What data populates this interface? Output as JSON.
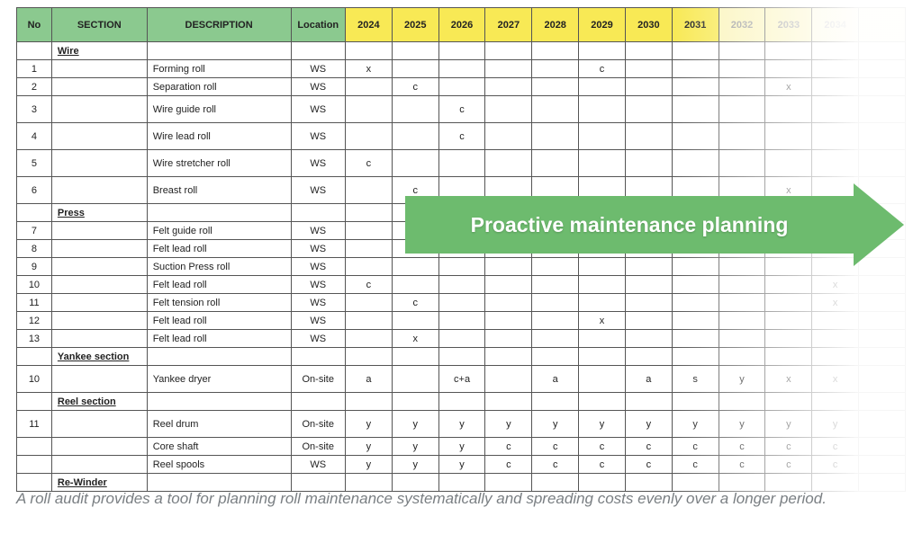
{
  "header": {
    "fixed_cols": [
      "No",
      "SECTION",
      "DESCRIPTION",
      "Location"
    ],
    "years": [
      "2024",
      "2025",
      "2026",
      "2027",
      "2028",
      "2029",
      "2030",
      "2031",
      "2032",
      "2033",
      "2034",
      ""
    ],
    "colors": {
      "green": "#8bc98f",
      "yellow": "#f8e955",
      "fade1": "#fbf4b9",
      "fade2": "#fdf9d8"
    }
  },
  "sections": {
    "wire": "Wire",
    "press": "Press",
    "yankee": "Yankee section",
    "reel": "Reel section",
    "rewind": "Re-Winder"
  },
  "rows": {
    "r1": {
      "no": "1",
      "desc": "Forming roll",
      "loc": "WS",
      "cells": [
        "x",
        "",
        "",
        "",
        "",
        "c",
        "",
        "",
        "",
        "",
        "",
        ""
      ]
    },
    "r2": {
      "no": "2",
      "desc": "Separation roll",
      "loc": "WS",
      "cells": [
        "",
        "c",
        "",
        "",
        "",
        "",
        "",
        "",
        "",
        "x",
        "",
        ""
      ]
    },
    "r3": {
      "no": "3",
      "desc": "Wire guide roll",
      "loc": "WS",
      "cells": [
        "",
        "",
        "c",
        "",
        "",
        "",
        "",
        "",
        "",
        "",
        "",
        ""
      ]
    },
    "r4": {
      "no": "4",
      "desc": "Wire lead roll",
      "loc": "WS",
      "cells": [
        "",
        "",
        "c",
        "",
        "",
        "",
        "",
        "",
        "",
        "",
        "",
        ""
      ]
    },
    "r5": {
      "no": "5",
      "desc": "Wire stretcher roll",
      "loc": "WS",
      "cells": [
        "c",
        "",
        "",
        "",
        "",
        "",
        "",
        "",
        "",
        "",
        "",
        ""
      ]
    },
    "r6": {
      "no": "6",
      "desc": "Breast roll",
      "loc": "WS",
      "cells": [
        "",
        "c",
        "",
        "",
        "",
        "",
        "",
        "",
        "",
        "x",
        "",
        ""
      ]
    },
    "r7": {
      "no": "7",
      "desc": "Felt guide roll",
      "loc": "WS",
      "cells": [
        "",
        "",
        "",
        "",
        "",
        "",
        "",
        "",
        "",
        "",
        "",
        ""
      ]
    },
    "r8": {
      "no": "8",
      "desc": "Felt lead roll",
      "loc": "WS",
      "cells": [
        "",
        "",
        "",
        "",
        "",
        "",
        "",
        "",
        "",
        "",
        "",
        ""
      ]
    },
    "r9": {
      "no": "9",
      "desc": "Suction Press roll",
      "loc": "WS",
      "cells": [
        "",
        "",
        "",
        "",
        "",
        "",
        "",
        "",
        "",
        "",
        "",
        ""
      ]
    },
    "r10": {
      "no": "10",
      "desc": "Felt lead roll",
      "loc": "WS",
      "cells": [
        "c",
        "",
        "",
        "",
        "",
        "",
        "",
        "",
        "",
        "",
        "x",
        ""
      ]
    },
    "r11": {
      "no": "11",
      "desc": "Felt tension roll",
      "loc": "WS",
      "cells": [
        "",
        "c",
        "",
        "",
        "",
        "",
        "",
        "",
        "",
        "",
        "x",
        ""
      ]
    },
    "r12": {
      "no": "12",
      "desc": "Felt lead roll",
      "loc": "WS",
      "cells": [
        "",
        "",
        "",
        "",
        "",
        "x",
        "",
        "",
        "",
        "",
        "",
        ""
      ]
    },
    "r13": {
      "no": "13",
      "desc": "Felt lead roll",
      "loc": "WS",
      "cells": [
        "",
        "x",
        "",
        "",
        "",
        "",
        "",
        "",
        "",
        "",
        "",
        ""
      ]
    },
    "ry": {
      "no": "10",
      "desc": "Yankee dryer",
      "loc": "On-site",
      "cells": [
        "a",
        "",
        "c+a",
        "",
        "a",
        "",
        "a",
        "s",
        "y",
        "x",
        "x",
        ""
      ]
    },
    "rr1": {
      "no": "11",
      "desc": "Reel drum",
      "loc": "On-site",
      "cells": [
        "y",
        "y",
        "y",
        "y",
        "y",
        "y",
        "y",
        "y",
        "y",
        "y",
        "y",
        ""
      ]
    },
    "rr2": {
      "no": "",
      "desc": "Core shaft",
      "loc": "On-site",
      "cells": [
        "y",
        "y",
        "y",
        "c",
        "c",
        "c",
        "c",
        "c",
        "c",
        "c",
        "c",
        ""
      ]
    },
    "rr3": {
      "no": "",
      "desc": "Reel spools",
      "loc": "WS",
      "cells": [
        "y",
        "y",
        "y",
        "c",
        "c",
        "c",
        "c",
        "c",
        "c",
        "c",
        "c",
        ""
      ]
    }
  },
  "arrow_text": "Proactive maintenance planning",
  "arrow_color": "#6dbb6e",
  "caption": "A roll audit provides a tool for planning roll maintenance systematically and spreading costs evenly over a longer period.",
  "caption_color": "#7a7f83"
}
